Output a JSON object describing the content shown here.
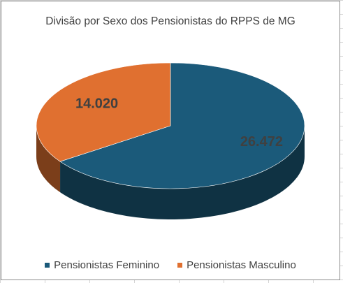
{
  "chart_data": {
    "type": "pie",
    "title": "Divisão por Sexo dos Pensionistas do RPPS de MG",
    "categories": [
      "Pensionistas Feminino",
      "Pensionistas Masculino"
    ],
    "values": [
      26472,
      14020
    ],
    "value_labels": [
      "26.472",
      "14.020"
    ],
    "colors": [
      "#1B5A7A",
      "#E07030"
    ],
    "legend_position": "bottom"
  }
}
